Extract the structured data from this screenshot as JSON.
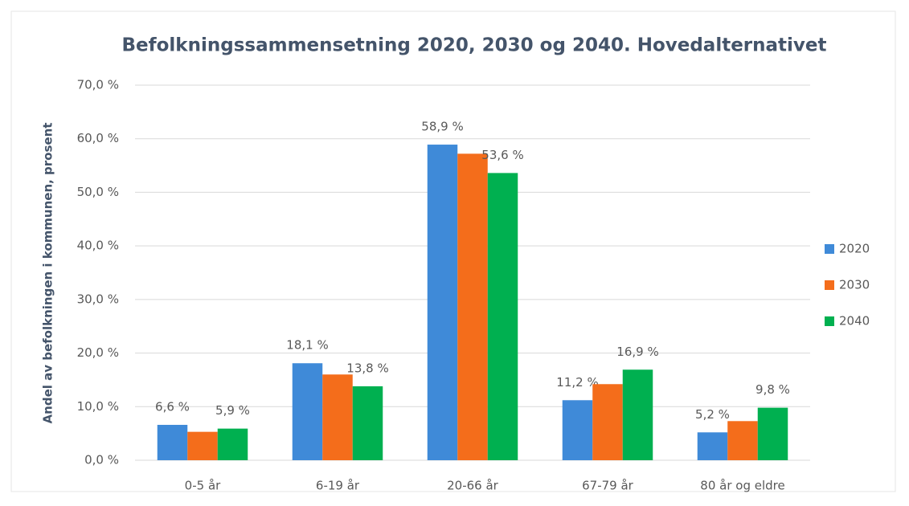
{
  "chart_data": {
    "type": "bar",
    "title": "Befolkningssammensetning 2020, 2030 og 2040. Hovedalternativet",
    "y_label": "Andel av befolkningen i kommunen, prosent",
    "categories": [
      "0-5 år",
      "6-19 år",
      "20-66 år",
      "67-79 år",
      "80 år og eldre"
    ],
    "series": [
      {
        "name": "2020",
        "color": "#3f8ad8",
        "values": [
          6.6,
          18.1,
          58.9,
          11.2,
          5.2
        ],
        "value_labels": [
          "6,6 %",
          "18,1 %",
          "58,9 %",
          "11,2 %",
          "5,2 %"
        ]
      },
      {
        "name": "2030",
        "color": "#f46d1b",
        "values": [
          5.3,
          16.0,
          57.2,
          14.2,
          7.3
        ]
      },
      {
        "name": "2040",
        "color": "#00b050",
        "values": [
          5.9,
          13.8,
          53.6,
          16.9,
          9.8
        ],
        "value_labels": [
          "5,9 %",
          "13,8 %",
          "53,6 %",
          "16,9 %",
          "9,8 %"
        ]
      }
    ],
    "ylim": [
      0,
      70
    ],
    "yticks": [
      {
        "value": 0,
        "label": "0,0 %"
      },
      {
        "value": 10,
        "label": "10,0 %"
      },
      {
        "value": 20,
        "label": "20,0 %"
      },
      {
        "value": 30,
        "label": "30,0 %"
      },
      {
        "value": 40,
        "label": "40,0 %"
      },
      {
        "value": 50,
        "label": "50,0 %"
      },
      {
        "value": 60,
        "label": "60,0 %"
      },
      {
        "value": 70,
        "label": "70,0 %"
      }
    ],
    "grid": true,
    "legend": "right"
  }
}
